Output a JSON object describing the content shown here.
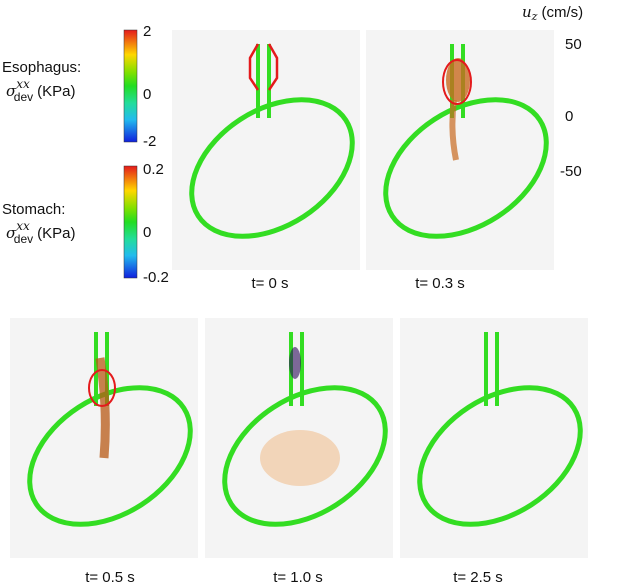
{
  "colorbars": [
    {
      "label": "Esophagus:",
      "symbol": "σ",
      "superscript": "xx",
      "subscript": "dev",
      "unit": "(KPa)",
      "ticks": [
        2,
        0,
        -2
      ]
    },
    {
      "label": "Stomach:",
      "symbol": "σ",
      "superscript": "xx",
      "subscript": "dev",
      "unit": "(KPa)",
      "ticks": [
        0.2,
        0,
        -0.2
      ]
    },
    {
      "symbol": "u",
      "subscript": "z",
      "unit": "(cm/s)",
      "ticks": [
        50,
        0,
        -50
      ]
    }
  ],
  "panels": [
    {
      "caption": "t= 0 s"
    },
    {
      "caption": "t= 0.3 s"
    },
    {
      "caption": "t= 0.5 s"
    },
    {
      "caption": "t= 1.0 s"
    },
    {
      "caption": "t= 2.5 s"
    }
  ]
}
